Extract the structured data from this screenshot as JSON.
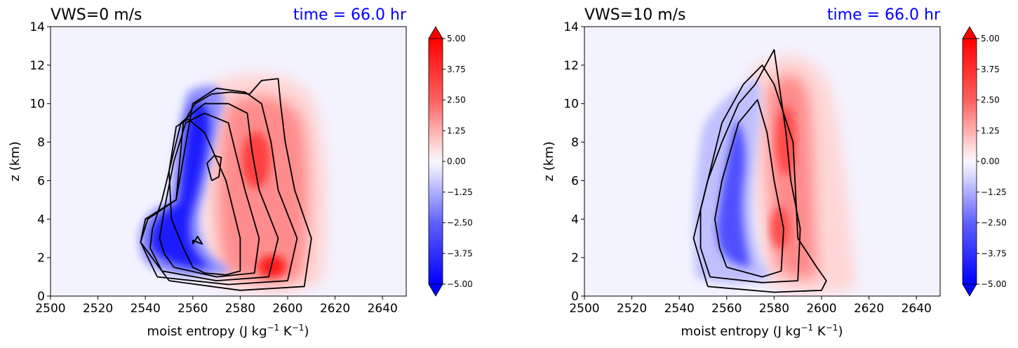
{
  "chart_data": [
    {
      "type": "contour",
      "title": "VWS=0 m/s",
      "title_right": "time = 66.0 hr",
      "xlabel_main": "moist entropy (J kg",
      "xlabel_exp1": "−1",
      "xlabel_mid": " K",
      "xlabel_exp2": "−1",
      "xlabel_end": ")",
      "ylabel": "z (km)",
      "xlim": [
        2500,
        2650
      ],
      "ylim": [
        0,
        14
      ],
      "xticks": [
        "2500",
        "2520",
        "2540",
        "2560",
        "2580",
        "2600",
        "2620",
        "2640"
      ],
      "yticks": [
        "0",
        "2",
        "4",
        "6",
        "8",
        "10",
        "12",
        "14"
      ],
      "colorbar": {
        "min": -5.0,
        "max": 5.0,
        "ticks": [
          "5.00",
          "3.75",
          "2.50",
          "1.25",
          "0.00",
          "−1.25",
          "−2.50",
          "−3.75",
          "−5.00"
        ],
        "colormap": "bwr",
        "extend": "both"
      },
      "positive_anomaly": {
        "peak_value": 5.0,
        "peak_x": 2590,
        "peak_z": 1.4,
        "region": "2565-2615 J/kg/K, 0-11 km"
      },
      "negative_anomaly": {
        "peak_value": -5.0,
        "peak_x": 2562,
        "peak_z": 7.5,
        "region": "2540-2570 J/kg/K, 0.5-11 km"
      },
      "contours": [
        [
          [
            2556,
            1.0
          ],
          [
            2566,
            1.0
          ],
          [
            2575,
            1.2
          ],
          [
            2580,
            1.6
          ],
          [
            2578,
            3
          ],
          [
            2572,
            5
          ],
          [
            2567,
            7
          ],
          [
            2563,
            8.5
          ],
          [
            2560,
            9.5
          ],
          [
            2556,
            10.1
          ],
          [
            2562,
            10.6
          ],
          [
            2573,
            10.0
          ],
          [
            2583,
            9.5
          ],
          [
            2587,
            8
          ],
          [
            2588,
            6
          ],
          [
            2588,
            4
          ],
          [
            2590,
            2.5
          ],
          [
            2586,
            1.1
          ],
          [
            2570,
            0.8
          ],
          [
            2556,
            1.0
          ]
        ]
      ],
      "line_series": [
        {
          "x": [
            2565,
            2574,
            2580,
            2580,
            2574,
            2565,
            2558,
            2553,
            2550,
            2551,
            2556,
            2560,
            2565
          ],
          "y": [
            1.2,
            1.1,
            1.3,
            3.0,
            6.0,
            8.5,
            9.2,
            8.8,
            6.5,
            4.0,
            2.5,
            1.5,
            1.2
          ]
        },
        {
          "x": [
            2552,
            2570,
            2586,
            2588,
            2582,
            2578,
            2575,
            2565,
            2557,
            2552,
            2548,
            2546,
            2548,
            2552
          ],
          "y": [
            1.5,
            1.0,
            1.2,
            3.0,
            5.5,
            7.5,
            9.0,
            9.5,
            9.0,
            7.0,
            4.5,
            3.0,
            2.2,
            1.5
          ]
        },
        {
          "x": [
            2547,
            2570,
            2592,
            2596,
            2588,
            2585,
            2583,
            2575,
            2565,
            2555,
            2547,
            2543,
            2542,
            2547
          ],
          "y": [
            1.3,
            0.8,
            1.0,
            3.0,
            5.5,
            7.5,
            9.5,
            10.0,
            10.0,
            9.0,
            5.0,
            3.5,
            2.5,
            1.3
          ]
        },
        {
          "x": [
            2545,
            2575,
            2600,
            2604,
            2596,
            2593,
            2589,
            2582,
            2570,
            2560,
            2553,
            2541,
            2538,
            2545
          ],
          "y": [
            1.0,
            0.6,
            0.8,
            3.0,
            5.5,
            8.0,
            10.0,
            10.6,
            10.8,
            10.0,
            5.0,
            4.0,
            2.8,
            1.0
          ]
        },
        {
          "x": [
            2550,
            2580,
            2607,
            2610,
            2603,
            2599,
            2597,
            2596,
            2589,
            2584,
            2576,
            2568,
            2561,
            2556,
            2553,
            2540,
            2538,
            2550
          ],
          "y": [
            0.8,
            0.3,
            0.5,
            3.0,
            5.5,
            8.0,
            10.0,
            11.3,
            11.2,
            10.5,
            10.6,
            10.5,
            10.0,
            9.0,
            5.0,
            4.0,
            2.8,
            0.8
          ]
        }
      ],
      "small_loops": [
        {
          "x": [
            2568,
            2571,
            2572,
            2569,
            2566,
            2568
          ],
          "y": [
            6.0,
            6.2,
            7.2,
            7.3,
            6.9,
            6.0
          ]
        },
        {
          "x": [
            2560,
            2562,
            2564,
            2560,
            2560
          ],
          "y": [
            2.7,
            3.1,
            2.7,
            2.9,
            2.7
          ]
        }
      ]
    },
    {
      "type": "contour",
      "title": "VWS=10 m/s",
      "title_right": "time = 66.0 hr",
      "xlabel_main": "moist entropy (J kg",
      "xlabel_exp1": "−1",
      "xlabel_mid": " K",
      "xlabel_exp2": "−1",
      "xlabel_end": ")",
      "ylabel": "z (km)",
      "xlim": [
        2500,
        2650
      ],
      "ylim": [
        0,
        14
      ],
      "xticks": [
        "2500",
        "2520",
        "2540",
        "2560",
        "2580",
        "2600",
        "2620",
        "2640"
      ],
      "yticks": [
        "0",
        "2",
        "4",
        "6",
        "8",
        "10",
        "12",
        "14"
      ],
      "colorbar": {
        "min": -5.0,
        "max": 5.0,
        "ticks": [
          "5.00",
          "3.75",
          "2.50",
          "1.25",
          "0.00",
          "−1.25",
          "−2.50",
          "−3.75",
          "−5.00"
        ],
        "colormap": "bwr",
        "extend": "both"
      },
      "positive_anomaly": {
        "peak_value": 3.75,
        "peak_x": 2582,
        "peak_z": 8,
        "region": "2575-2605 J/kg/K, 0-12 km"
      },
      "negative_anomaly": {
        "peak_value": -3.0,
        "peak_x": 2558,
        "peak_z": 4,
        "region": "2545-2575 J/kg/K, 0-12 km"
      },
      "line_series": [
        {
          "x": [
            2560,
            2575,
            2583,
            2584,
            2580,
            2577,
            2573,
            2565,
            2558,
            2555,
            2557,
            2560
          ],
          "y": [
            1.5,
            1.0,
            1.3,
            3.5,
            6.0,
            8.5,
            10.2,
            9.0,
            6.0,
            4.0,
            2.5,
            1.5
          ]
        },
        {
          "x": [
            2553,
            2575,
            2590,
            2591,
            2587,
            2585,
            2580,
            2572,
            2565,
            2558,
            2552,
            2549,
            2549,
            2553
          ],
          "y": [
            1.0,
            0.7,
            0.8,
            3.5,
            6.0,
            8.5,
            12.8,
            11.0,
            10.0,
            8.0,
            6.0,
            4.5,
            2.5,
            1.0
          ]
        },
        {
          "x": [
            2552,
            2580,
            2600,
            2602,
            2598,
            2590,
            2588,
            2580,
            2575,
            2567,
            2558,
            2552,
            2548,
            2546,
            2552
          ],
          "y": [
            0.5,
            0.2,
            0.3,
            0.8,
            1.5,
            3.0,
            8.0,
            11.0,
            12.0,
            11.0,
            9.0,
            6.0,
            4.0,
            3.0,
            0.5
          ]
        }
      ],
      "small_loops": []
    }
  ]
}
